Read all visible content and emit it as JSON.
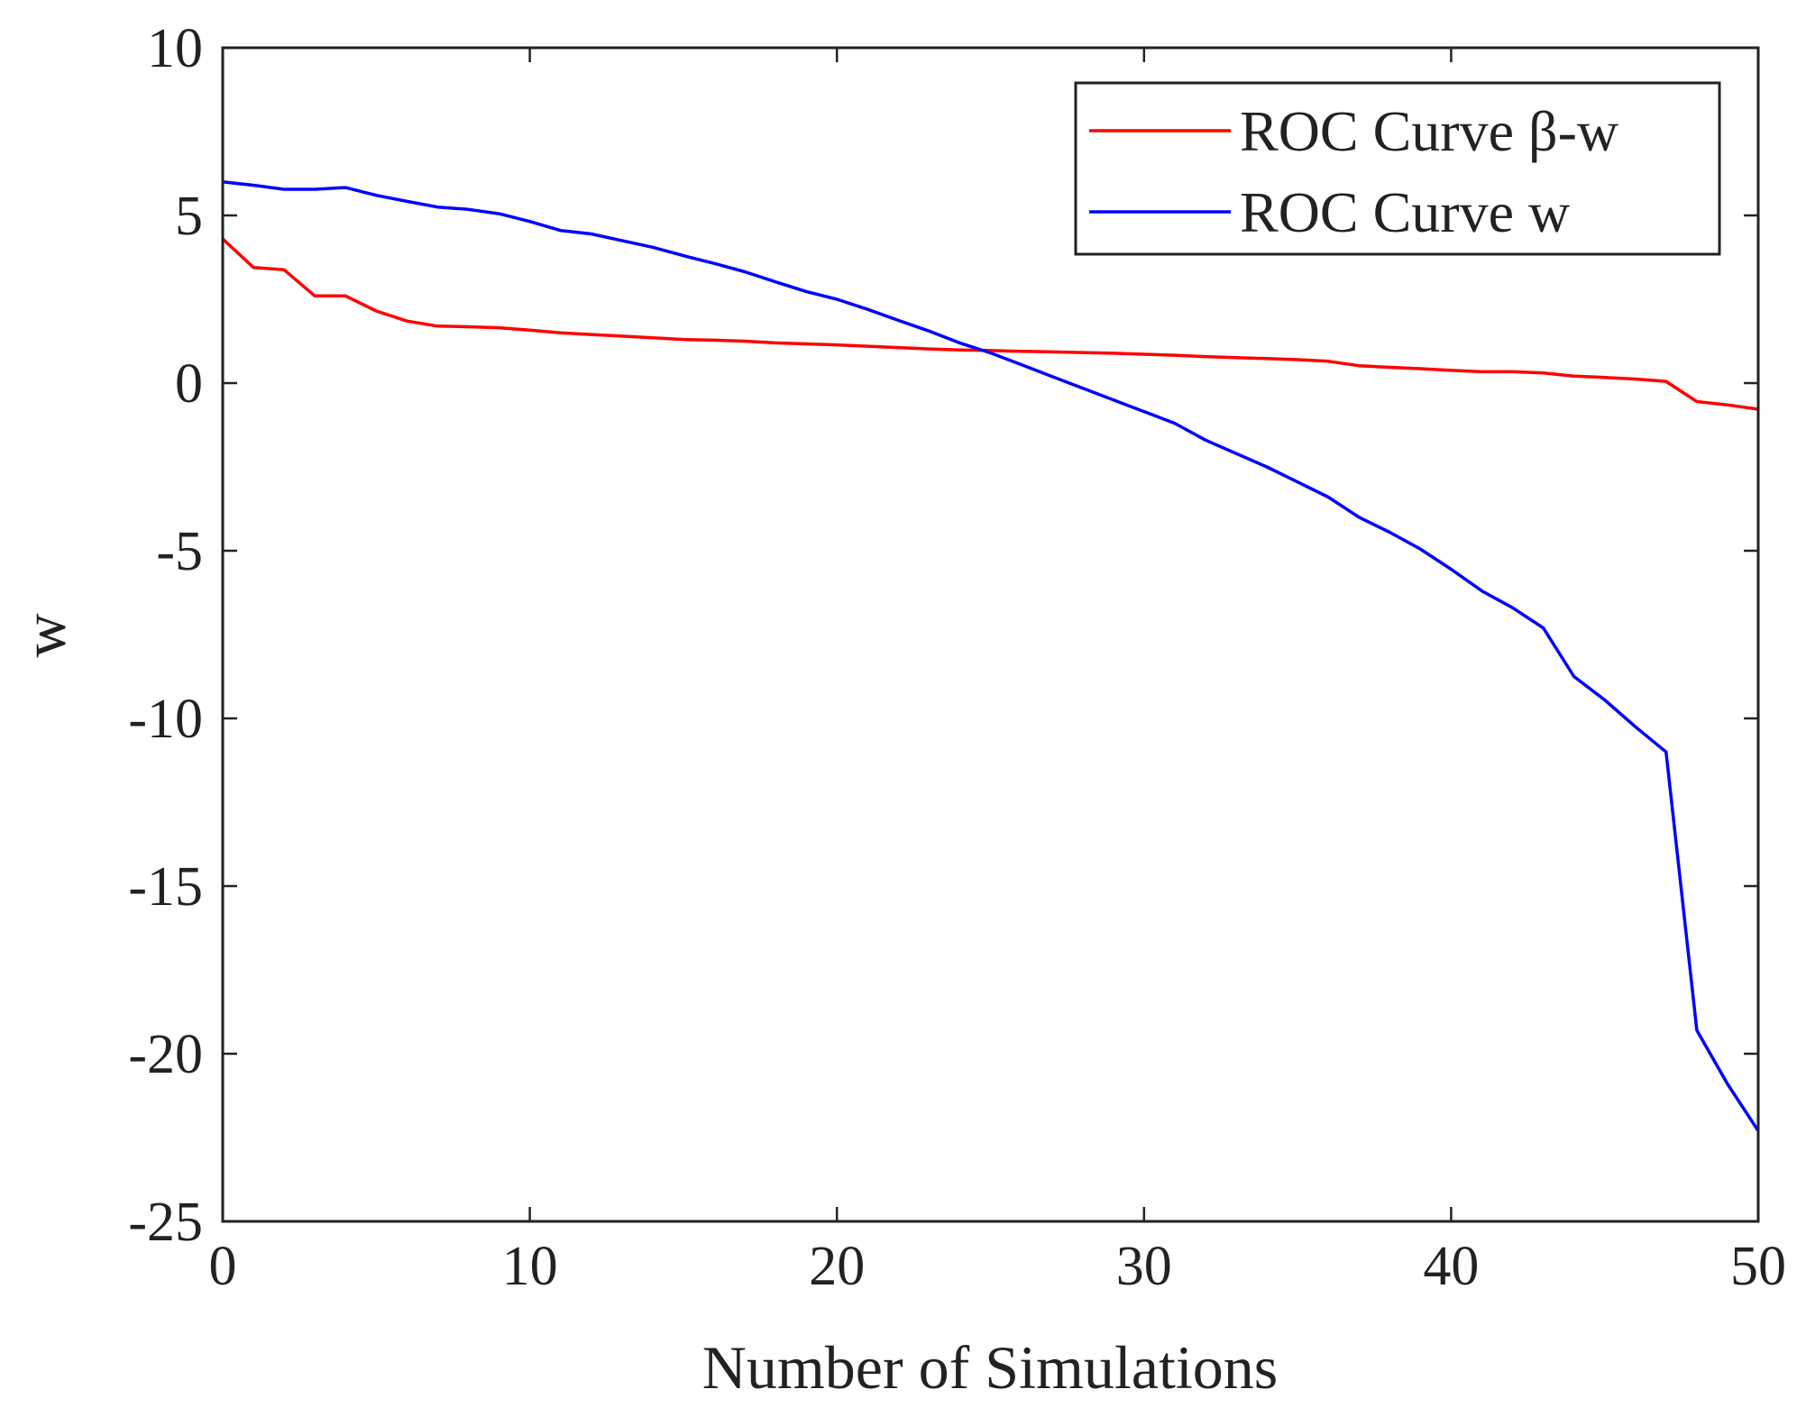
{
  "chart_data": {
    "type": "line",
    "title": "",
    "xlabel": "Number of Simulations",
    "ylabel": "w",
    "xlim": [
      0,
      50
    ],
    "ylim": [
      -25,
      10
    ],
    "xticks": [
      0,
      10,
      20,
      30,
      40,
      50
    ],
    "yticks": [
      -25,
      -20,
      -15,
      -10,
      -5,
      0,
      5,
      10
    ],
    "xtick_labels": [
      "0",
      "10",
      "20",
      "30",
      "40",
      "50"
    ],
    "ytick_labels": [
      "-25",
      "-20",
      "-15",
      "-10",
      "-5",
      "0",
      "5",
      "10"
    ],
    "grid": false,
    "legend_position": "top-right",
    "series": [
      {
        "name": "ROC Curve β-w",
        "color": "#ff0000",
        "x": [
          0,
          1,
          2,
          3,
          4,
          5,
          6,
          7,
          8,
          9,
          10,
          11,
          12,
          13,
          14,
          15,
          16,
          17,
          18,
          19,
          20,
          21,
          22,
          23,
          24,
          25,
          26,
          27,
          28,
          29,
          30,
          31,
          32,
          33,
          34,
          35,
          36,
          37,
          38,
          39,
          40,
          41,
          42,
          43,
          44,
          45,
          46,
          47,
          48,
          49,
          50
        ],
        "y": [
          4.3,
          3.45,
          3.38,
          2.6,
          2.6,
          2.15,
          1.85,
          1.7,
          1.68,
          1.65,
          1.58,
          1.5,
          1.45,
          1.4,
          1.35,
          1.3,
          1.28,
          1.25,
          1.2,
          1.17,
          1.14,
          1.1,
          1.06,
          1.02,
          0.99,
          0.97,
          0.95,
          0.93,
          0.91,
          0.89,
          0.86,
          0.83,
          0.79,
          0.76,
          0.73,
          0.7,
          0.65,
          0.52,
          0.47,
          0.43,
          0.38,
          0.34,
          0.34,
          0.3,
          0.21,
          0.17,
          0.12,
          0.05,
          -0.55,
          -0.65,
          -0.78
        ]
      },
      {
        "name": "ROC Curve w",
        "color": "#0000ff",
        "x": [
          0,
          1,
          2,
          3,
          4,
          5,
          6,
          7,
          8,
          9,
          10,
          11,
          12,
          13,
          14,
          15,
          16,
          17,
          18,
          19,
          20,
          21,
          22,
          23,
          24,
          25,
          26,
          27,
          28,
          29,
          30,
          31,
          32,
          33,
          34,
          35,
          36,
          37,
          38,
          39,
          40,
          41,
          42,
          43,
          44,
          45,
          46,
          47,
          48,
          49,
          50
        ],
        "y": [
          6.0,
          5.9,
          5.78,
          5.78,
          5.83,
          5.6,
          5.42,
          5.25,
          5.18,
          5.05,
          4.82,
          4.55,
          4.45,
          4.25,
          4.05,
          3.8,
          3.57,
          3.32,
          3.02,
          2.73,
          2.5,
          2.2,
          1.87,
          1.55,
          1.2,
          0.9,
          0.55,
          0.2,
          -0.15,
          -0.5,
          -0.85,
          -1.2,
          -1.7,
          -2.1,
          -2.5,
          -2.95,
          -3.4,
          -4.0,
          -4.45,
          -4.95,
          -5.55,
          -6.2,
          -6.7,
          -7.3,
          -8.75,
          -9.45,
          -10.25,
          -11.0,
          -19.3,
          -20.9,
          -22.3
        ]
      }
    ]
  }
}
